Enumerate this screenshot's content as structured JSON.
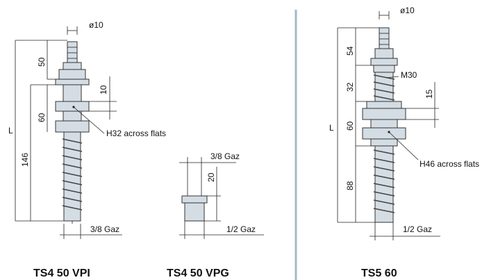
{
  "colors": {
    "part_fill": "#d4dde4",
    "divider": "#9fbcc6",
    "line": "#222222"
  },
  "drawings": {
    "vpi": {
      "title": "TS4 50 VPI",
      "dim_diameter": "ø10",
      "dim_50": "50",
      "dim_10": "10",
      "dim_60": "60",
      "dim_146": "146",
      "dim_L": "L",
      "flats_note": "H32 across flats",
      "thread_note": "3/8 Gaz"
    },
    "vpg": {
      "title": "TS4 50 VPG",
      "dim_top_thread": "3/8 Gaz",
      "dim_20": "20",
      "dim_bottom_thread": "1/2 Gaz"
    },
    "ts5": {
      "title": "TS5 60",
      "dim_diameter": "ø10",
      "dim_54": "54",
      "dim_32": "32",
      "dim_M30": "M30",
      "dim_15": "15",
      "dim_60": "60",
      "dim_88": "88",
      "dim_L": "L",
      "flats_note": "H46 across flats",
      "thread_note": "1/2 Gaz"
    }
  }
}
